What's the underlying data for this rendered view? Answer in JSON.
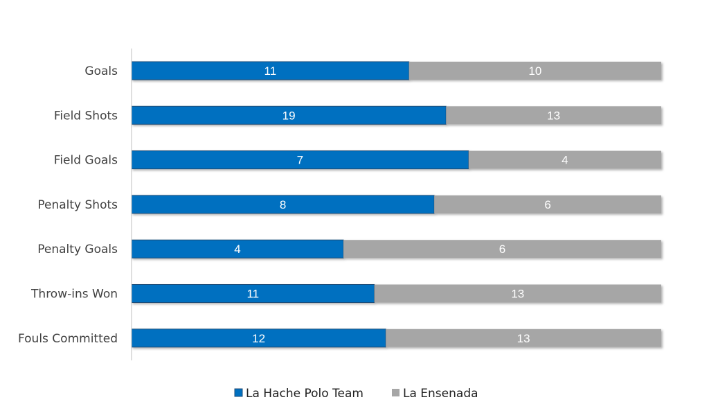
{
  "chart_data": {
    "type": "bar",
    "orientation": "horizontal",
    "stacking": "percent",
    "categories": [
      "Goals",
      "Field Shots",
      "Field Goals",
      "Penalty Shots",
      "Penalty Goals",
      "Throw-ins Won",
      "Fouls Committed"
    ],
    "series": [
      {
        "name": "La Hache Polo Team",
        "color": "#0070C0",
        "values": [
          11,
          19,
          7,
          8,
          4,
          11,
          12
        ]
      },
      {
        "name": "La Ensenada",
        "color": "#A6A6A6",
        "values": [
          10,
          13,
          4,
          6,
          6,
          13,
          13
        ]
      }
    ],
    "legend": "bottom",
    "grid": false,
    "data_labels": true
  }
}
